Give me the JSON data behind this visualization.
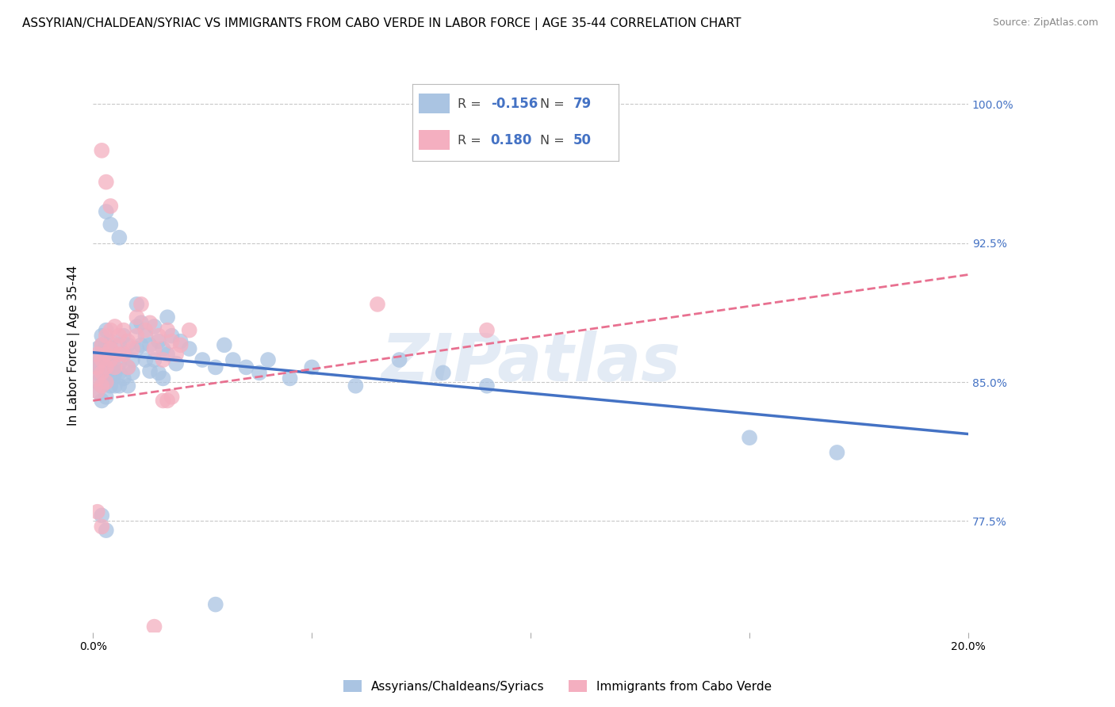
{
  "title": "ASSYRIAN/CHALDEAN/SYRIAC VS IMMIGRANTS FROM CABO VERDE IN LABOR FORCE | AGE 35-44 CORRELATION CHART",
  "source": "Source: ZipAtlas.com",
  "ylabel": "In Labor Force | Age 35-44",
  "xlim": [
    0.0,
    0.2
  ],
  "ylim": [
    0.715,
    1.025
  ],
  "yticks": [
    0.775,
    0.85,
    0.925,
    1.0
  ],
  "ytick_labels": [
    "77.5%",
    "85.0%",
    "92.5%",
    "100.0%"
  ],
  "xticks": [
    0.0,
    0.05,
    0.1,
    0.15,
    0.2
  ],
  "xtick_labels": [
    "0.0%",
    "",
    "",
    "",
    "20.0%"
  ],
  "blue_color": "#aac4e2",
  "blue_line_color": "#4472c4",
  "pink_color": "#f4afc0",
  "pink_line_color": "#e87090",
  "blue_trend": [
    0.0,
    0.866,
    0.2,
    0.822
  ],
  "pink_trend": [
    0.0,
    0.84,
    0.2,
    0.908
  ],
  "blue_scatter": [
    [
      0.001,
      0.85
    ],
    [
      0.001,
      0.855
    ],
    [
      0.001,
      0.86
    ],
    [
      0.001,
      0.862
    ],
    [
      0.001,
      0.868
    ],
    [
      0.001,
      0.858
    ],
    [
      0.001,
      0.845
    ],
    [
      0.002,
      0.87
    ],
    [
      0.002,
      0.855
    ],
    [
      0.002,
      0.865
    ],
    [
      0.002,
      0.848
    ],
    [
      0.002,
      0.858
    ],
    [
      0.002,
      0.875
    ],
    [
      0.002,
      0.84
    ],
    [
      0.003,
      0.862
    ],
    [
      0.003,
      0.855
    ],
    [
      0.003,
      0.87
    ],
    [
      0.003,
      0.85
    ],
    [
      0.003,
      0.878
    ],
    [
      0.003,
      0.842
    ],
    [
      0.004,
      0.868
    ],
    [
      0.004,
      0.855
    ],
    [
      0.004,
      0.862
    ],
    [
      0.004,
      0.848
    ],
    [
      0.004,
      0.872
    ],
    [
      0.005,
      0.865
    ],
    [
      0.005,
      0.858
    ],
    [
      0.005,
      0.848
    ],
    [
      0.005,
      0.855
    ],
    [
      0.006,
      0.87
    ],
    [
      0.006,
      0.86
    ],
    [
      0.006,
      0.855
    ],
    [
      0.006,
      0.848
    ],
    [
      0.007,
      0.875
    ],
    [
      0.007,
      0.865
    ],
    [
      0.007,
      0.852
    ],
    [
      0.008,
      0.87
    ],
    [
      0.008,
      0.858
    ],
    [
      0.008,
      0.848
    ],
    [
      0.009,
      0.862
    ],
    [
      0.009,
      0.855
    ],
    [
      0.01,
      0.892
    ],
    [
      0.01,
      0.88
    ],
    [
      0.01,
      0.868
    ],
    [
      0.011,
      0.882
    ],
    [
      0.011,
      0.87
    ],
    [
      0.012,
      0.875
    ],
    [
      0.012,
      0.862
    ],
    [
      0.013,
      0.87
    ],
    [
      0.013,
      0.856
    ],
    [
      0.014,
      0.88
    ],
    [
      0.014,
      0.862
    ],
    [
      0.015,
      0.872
    ],
    [
      0.015,
      0.855
    ],
    [
      0.016,
      0.868
    ],
    [
      0.016,
      0.852
    ],
    [
      0.017,
      0.885
    ],
    [
      0.017,
      0.865
    ],
    [
      0.018,
      0.875
    ],
    [
      0.019,
      0.86
    ],
    [
      0.02,
      0.872
    ],
    [
      0.022,
      0.868
    ],
    [
      0.025,
      0.862
    ],
    [
      0.028,
      0.858
    ],
    [
      0.03,
      0.87
    ],
    [
      0.032,
      0.862
    ],
    [
      0.035,
      0.858
    ],
    [
      0.038,
      0.855
    ],
    [
      0.04,
      0.862
    ],
    [
      0.045,
      0.852
    ],
    [
      0.05,
      0.858
    ],
    [
      0.06,
      0.848
    ],
    [
      0.07,
      0.862
    ],
    [
      0.08,
      0.855
    ],
    [
      0.09,
      0.848
    ],
    [
      0.003,
      0.942
    ],
    [
      0.004,
      0.935
    ],
    [
      0.006,
      0.928
    ],
    [
      0.002,
      0.778
    ],
    [
      0.003,
      0.77
    ],
    [
      0.15,
      0.82
    ],
    [
      0.17,
      0.812
    ],
    [
      0.028,
      0.73
    ]
  ],
  "pink_scatter": [
    [
      0.001,
      0.858
    ],
    [
      0.001,
      0.852
    ],
    [
      0.001,
      0.865
    ],
    [
      0.001,
      0.845
    ],
    [
      0.002,
      0.87
    ],
    [
      0.002,
      0.862
    ],
    [
      0.002,
      0.855
    ],
    [
      0.002,
      0.848
    ],
    [
      0.003,
      0.875
    ],
    [
      0.003,
      0.865
    ],
    [
      0.003,
      0.858
    ],
    [
      0.003,
      0.85
    ],
    [
      0.004,
      0.878
    ],
    [
      0.004,
      0.868
    ],
    [
      0.004,
      0.862
    ],
    [
      0.005,
      0.88
    ],
    [
      0.005,
      0.87
    ],
    [
      0.005,
      0.858
    ],
    [
      0.006,
      0.875
    ],
    [
      0.006,
      0.865
    ],
    [
      0.007,
      0.878
    ],
    [
      0.007,
      0.865
    ],
    [
      0.008,
      0.872
    ],
    [
      0.008,
      0.858
    ],
    [
      0.009,
      0.868
    ],
    [
      0.01,
      0.875
    ],
    [
      0.01,
      0.885
    ],
    [
      0.011,
      0.892
    ],
    [
      0.012,
      0.878
    ],
    [
      0.013,
      0.882
    ],
    [
      0.014,
      0.868
    ],
    [
      0.015,
      0.875
    ],
    [
      0.016,
      0.862
    ],
    [
      0.017,
      0.878
    ],
    [
      0.018,
      0.872
    ],
    [
      0.019,
      0.865
    ],
    [
      0.02,
      0.87
    ],
    [
      0.022,
      0.878
    ],
    [
      0.002,
      0.975
    ],
    [
      0.003,
      0.958
    ],
    [
      0.004,
      0.945
    ],
    [
      0.065,
      0.892
    ],
    [
      0.09,
      0.878
    ],
    [
      0.001,
      0.78
    ],
    [
      0.002,
      0.772
    ],
    [
      0.016,
      0.84
    ],
    [
      0.017,
      0.84
    ],
    [
      0.018,
      0.842
    ],
    [
      0.014,
      0.718
    ]
  ],
  "watermark": "ZIPatlas",
  "legend_labels": [
    "Assyrians/Chaldeans/Syriacs",
    "Immigrants from Cabo Verde"
  ],
  "grid_color": "#c8c8c8",
  "title_fontsize": 11,
  "axis_label_fontsize": 11,
  "tick_fontsize": 10
}
